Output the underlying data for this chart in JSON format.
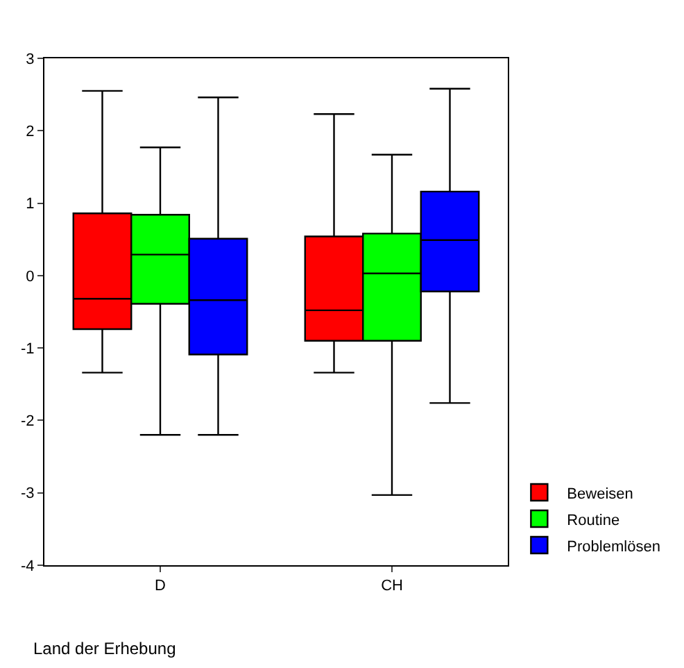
{
  "chart_data": {
    "type": "box",
    "xlabel": "Land der Erhebung",
    "categories": [
      "D",
      "CH"
    ],
    "ylim": [
      -4,
      3
    ],
    "yticks": [
      -4,
      -3,
      -2,
      -1,
      0,
      1,
      2,
      3
    ],
    "legend": "bottom right",
    "series": [
      {
        "name": "Beweisen",
        "color": "#ff0000",
        "boxes": [
          {
            "low": -1.34,
            "q1": -0.74,
            "median": -0.32,
            "q3": 0.86,
            "high": 2.55
          },
          {
            "low": -1.34,
            "q1": -0.9,
            "median": -0.48,
            "q3": 0.54,
            "high": 2.23
          }
        ]
      },
      {
        "name": "Routine",
        "color": "#00ff00",
        "boxes": [
          {
            "low": -2.2,
            "q1": -0.39,
            "median": 0.29,
            "q3": 0.84,
            "high": 1.77
          },
          {
            "low": -3.03,
            "q1": -0.9,
            "median": 0.03,
            "q3": 0.58,
            "high": 1.67
          }
        ]
      },
      {
        "name": "Problemlösen",
        "color": "#0000ff",
        "boxes": [
          {
            "low": -2.2,
            "q1": -1.09,
            "median": -0.34,
            "q3": 0.51,
            "high": 2.46
          },
          {
            "low": -1.76,
            "q1": -0.22,
            "median": 0.49,
            "q3": 1.16,
            "high": 2.58
          }
        ]
      }
    ]
  }
}
